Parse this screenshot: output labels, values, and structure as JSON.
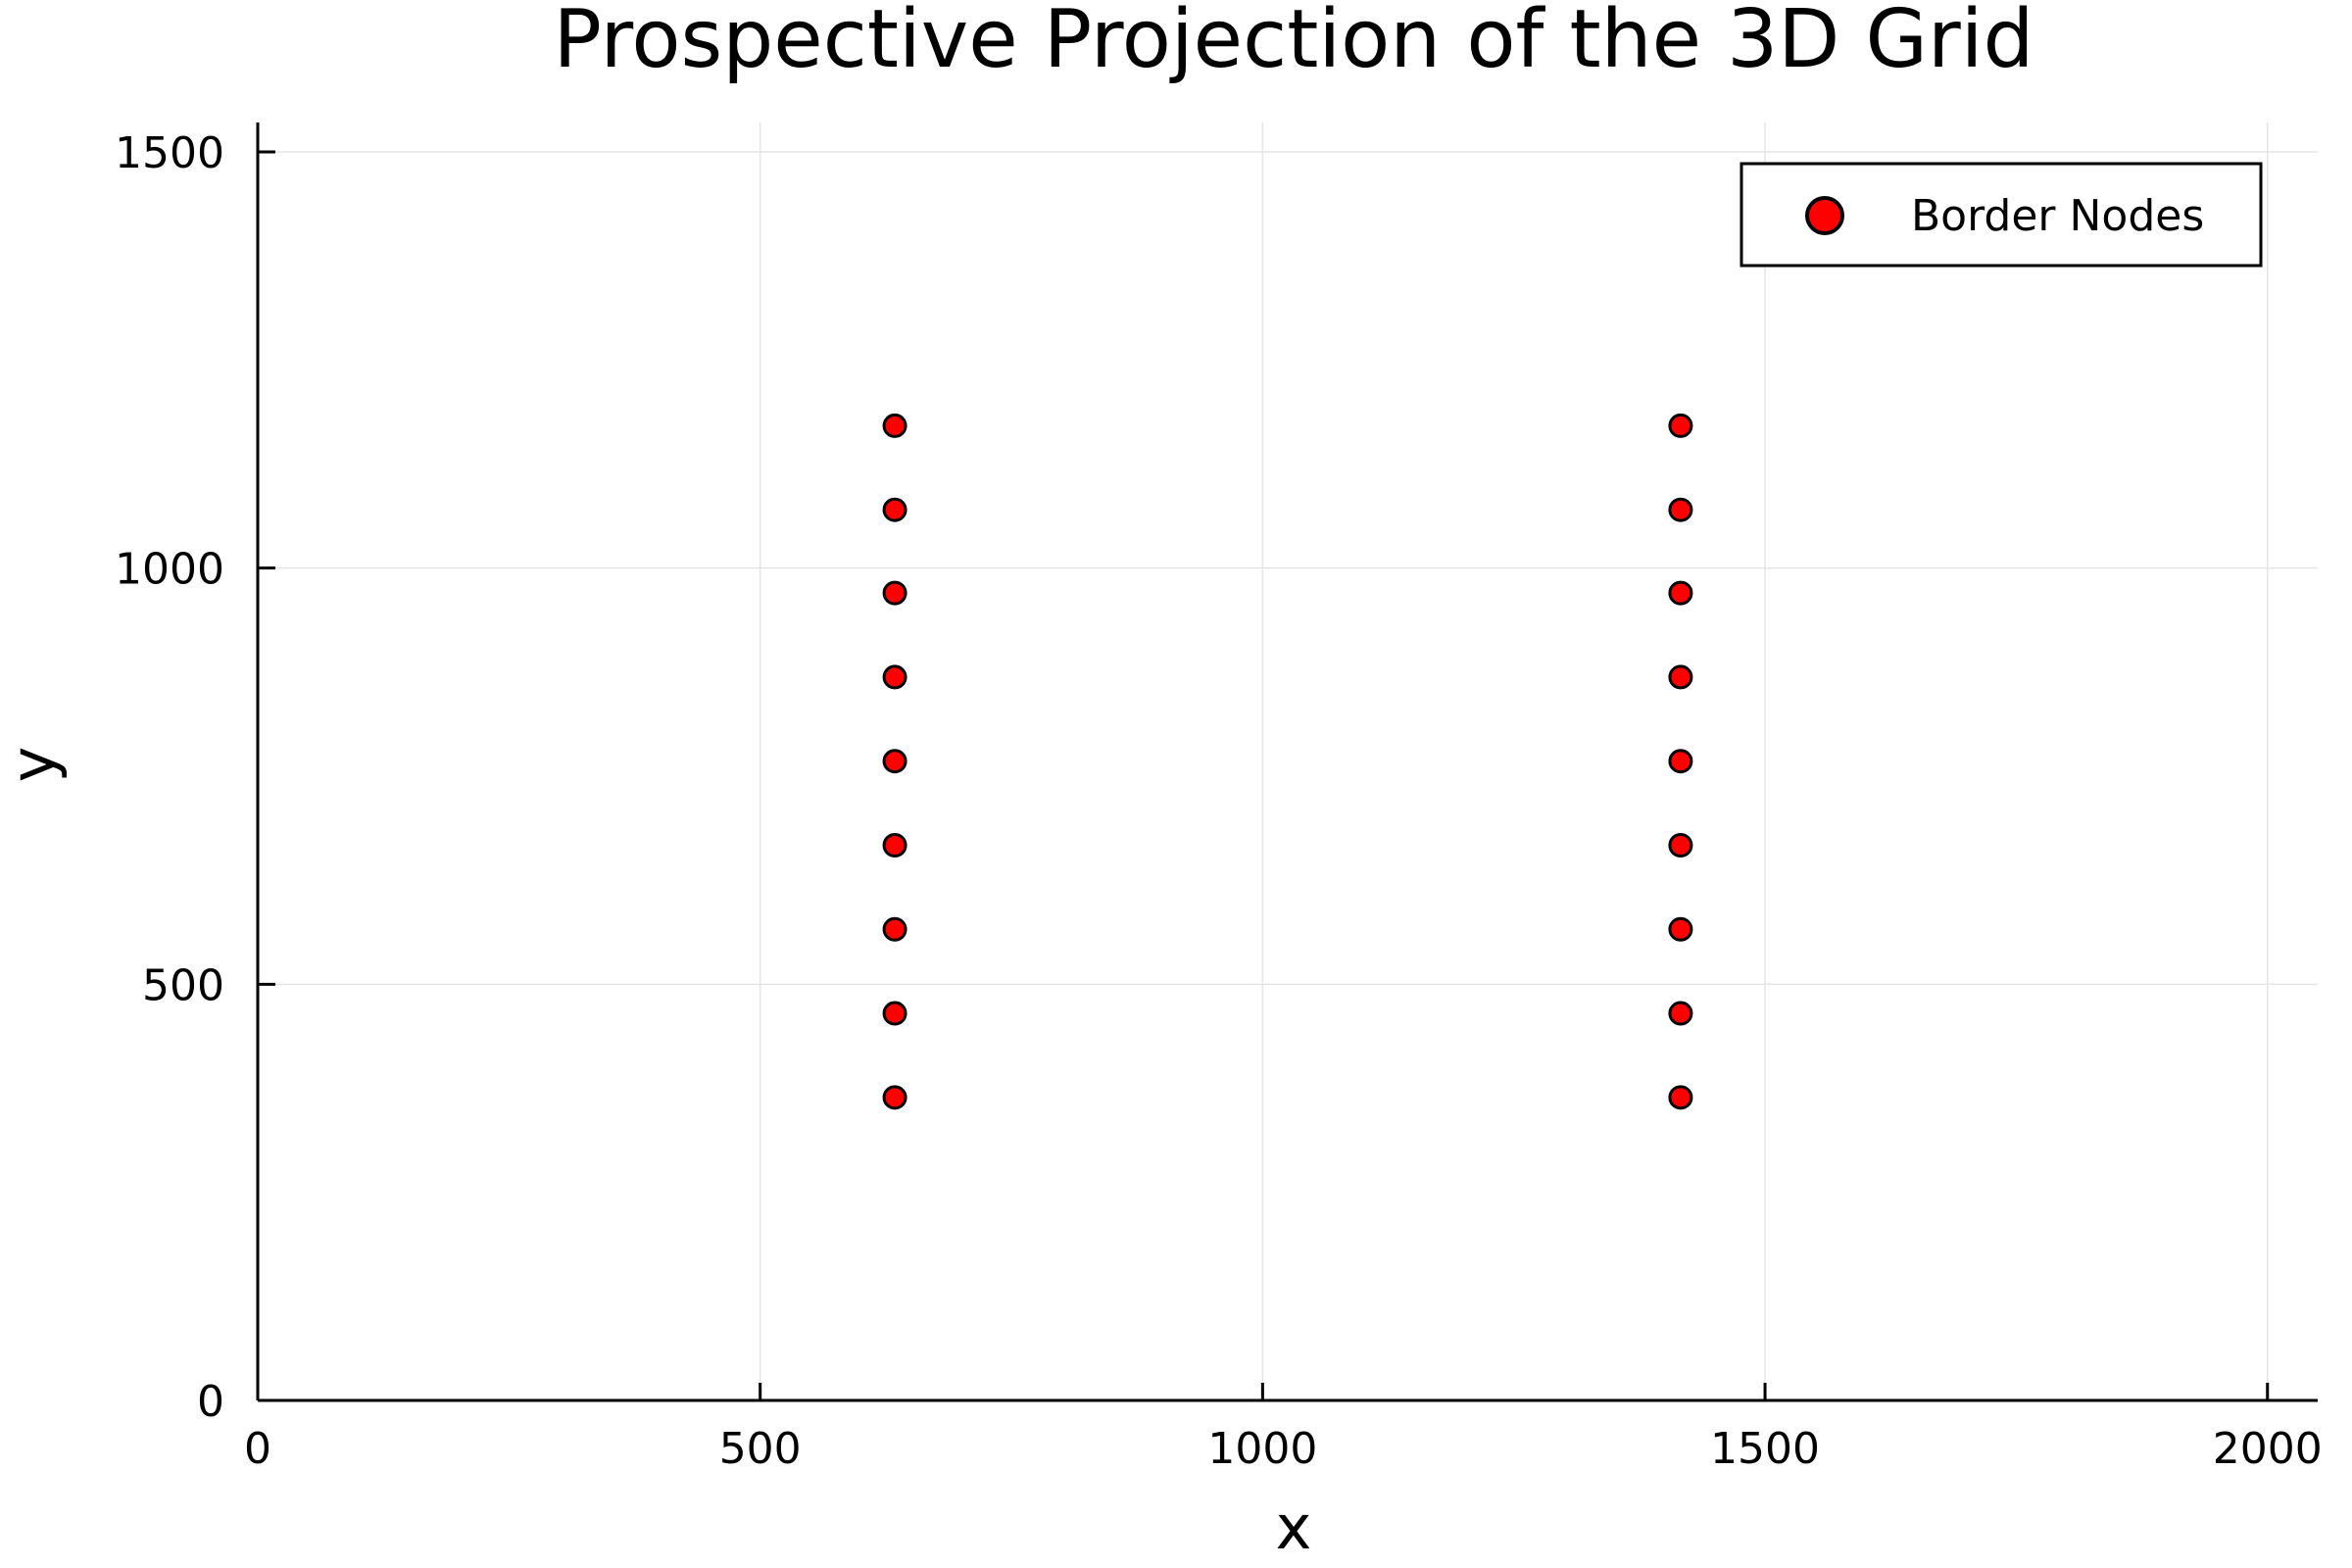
{
  "chart_data": {
    "type": "scatter",
    "title": "Prospective Projection of the 3D Grid",
    "xlabel": "x",
    "ylabel": "y",
    "xlim": [
      0,
      2050
    ],
    "ylim": [
      0,
      1500
    ],
    "x_ticks": [
      0,
      500,
      1000,
      1500,
      2000
    ],
    "y_ticks": [
      0,
      500,
      1000,
      1500
    ],
    "grid": true,
    "legend_position": "top-right",
    "series": [
      {
        "name": "Border Nodes",
        "color": "#ff0000",
        "edge_color": "#000000",
        "points": [
          {
            "x": 634,
            "y": 364
          },
          {
            "x": 634,
            "y": 465
          },
          {
            "x": 634,
            "y": 566
          },
          {
            "x": 634,
            "y": 667
          },
          {
            "x": 634,
            "y": 768
          },
          {
            "x": 634,
            "y": 869
          },
          {
            "x": 634,
            "y": 970
          },
          {
            "x": 634,
            "y": 1070
          },
          {
            "x": 634,
            "y": 1171
          },
          {
            "x": 1416,
            "y": 364
          },
          {
            "x": 1416,
            "y": 465
          },
          {
            "x": 1416,
            "y": 566
          },
          {
            "x": 1416,
            "y": 667
          },
          {
            "x": 1416,
            "y": 768
          },
          {
            "x": 1416,
            "y": 869
          },
          {
            "x": 1416,
            "y": 970
          },
          {
            "x": 1416,
            "y": 1070
          },
          {
            "x": 1416,
            "y": 1171
          }
        ]
      }
    ]
  }
}
